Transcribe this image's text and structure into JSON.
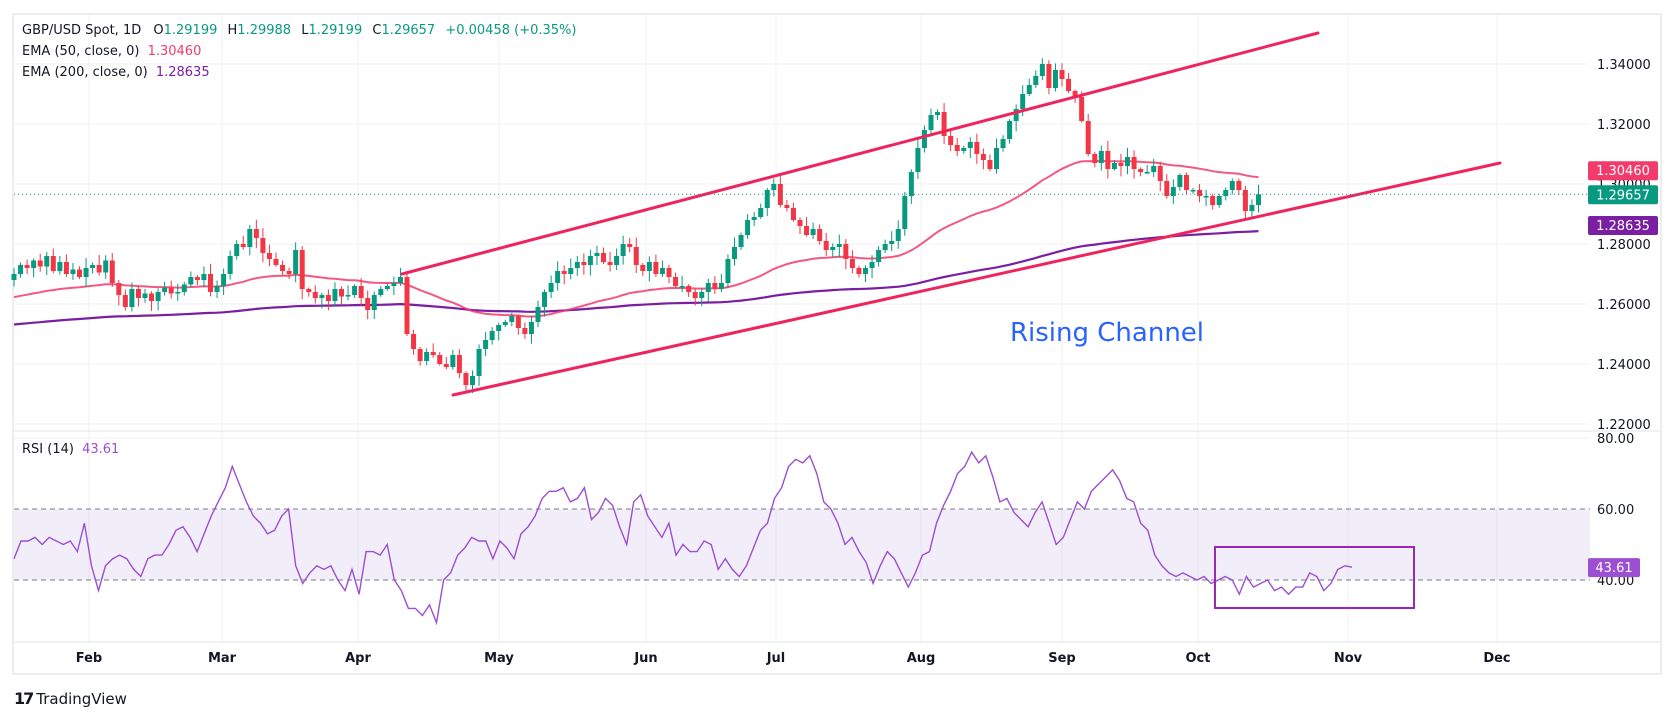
{
  "header": {
    "symbol": "GBP/USD Spot, 1D",
    "o_label": "O",
    "o": "1.29199",
    "h_label": "H",
    "h": "1.29988",
    "l_label": "L",
    "l": "1.29199",
    "c_label": "C",
    "c": "1.29657",
    "change": "+0.00458 (+0.35%)"
  },
  "indicators": {
    "ema50": {
      "label": "EMA (50, close, 0)",
      "value": "1.30460",
      "color": "#f23b6b"
    },
    "ema200": {
      "label": "EMA (200, close, 0)",
      "value": "1.28635",
      "color": "#7b1fa2"
    },
    "rsi": {
      "label": "RSI (14)",
      "value": "43.61",
      "color": "#9c4fd1"
    }
  },
  "annotation": {
    "text": "Rising Channel",
    "color": "#2962ff"
  },
  "brand": {
    "name": "TradingView"
  },
  "colors": {
    "up": "#089981",
    "down": "#f23645",
    "channel": "#f0245d"
  },
  "chart_data": [
    {
      "type": "candlestick",
      "title": "GBP/USD Spot, 1D",
      "ylim": [
        1.215,
        1.355
      ],
      "y_ticks": [
        "1.34000",
        "1.32000",
        "1.30000",
        "1.28000",
        "1.26000",
        "1.24000",
        "1.22000"
      ],
      "x_ticks": [
        "Feb",
        "Mar",
        "Apr",
        "May",
        "Jun",
        "Jul",
        "Aug",
        "Sep",
        "Oct",
        "Nov",
        "Dec"
      ],
      "last_price": 1.29657,
      "price_tags": [
        {
          "label": "1.30460",
          "value": 1.3046,
          "color": "#f23b6b"
        },
        {
          "label": "1.29657",
          "value": 1.29657,
          "color": "#089981"
        },
        {
          "label": "1.28635",
          "value": 1.28635,
          "color": "#7b1fa2"
        }
      ],
      "closes": [
        1.27,
        1.273,
        1.272,
        1.2745,
        1.2725,
        1.276,
        1.271,
        1.274,
        1.27,
        1.2715,
        1.269,
        1.272,
        1.273,
        1.2705,
        1.2745,
        1.267,
        1.263,
        1.259,
        1.265,
        1.262,
        1.2635,
        1.261,
        1.264,
        1.2655,
        1.2635,
        1.264,
        1.2665,
        1.269,
        1.268,
        1.27,
        1.264,
        1.266,
        1.27,
        1.276,
        1.28,
        1.279,
        1.285,
        1.282,
        1.277,
        1.275,
        1.273,
        1.271,
        1.27,
        1.278,
        1.265,
        1.264,
        1.262,
        1.263,
        1.261,
        1.265,
        1.2625,
        1.263,
        1.266,
        1.262,
        1.258,
        1.263,
        1.265,
        1.266,
        1.267,
        1.269,
        1.25,
        1.245,
        1.241,
        1.244,
        1.243,
        1.24,
        1.239,
        1.243,
        1.237,
        1.233,
        1.236,
        1.245,
        1.248,
        1.251,
        1.253,
        1.254,
        1.256,
        1.252,
        1.25,
        1.254,
        1.259,
        1.264,
        1.267,
        1.271,
        1.27,
        1.272,
        1.274,
        1.273,
        1.276,
        1.277,
        1.274,
        1.273,
        1.276,
        1.28,
        1.279,
        1.273,
        1.271,
        1.274,
        1.27,
        1.272,
        1.269,
        1.266,
        1.266,
        1.264,
        1.262,
        1.264,
        1.267,
        1.265,
        1.267,
        1.275,
        1.279,
        1.283,
        1.288,
        1.289,
        1.292,
        1.298,
        1.3,
        1.293,
        1.292,
        1.288,
        1.286,
        1.283,
        1.285,
        1.281,
        1.278,
        1.279,
        1.28,
        1.275,
        1.272,
        1.27,
        1.272,
        1.274,
        1.278,
        1.28,
        1.281,
        1.285,
        1.296,
        1.304,
        1.312,
        1.318,
        1.323,
        1.324,
        1.316,
        1.313,
        1.311,
        1.312,
        1.314,
        1.31,
        1.308,
        1.305,
        1.312,
        1.315,
        1.321,
        1.325,
        1.33,
        1.333,
        1.336,
        1.34,
        1.332,
        1.338,
        1.335,
        1.331,
        1.329,
        1.321,
        1.31,
        1.307,
        1.311,
        1.305,
        1.307,
        1.306,
        1.309,
        1.305,
        1.304,
        1.304,
        1.306,
        1.301,
        1.296,
        1.299,
        1.303,
        1.298,
        1.298,
        1.296,
        1.296,
        1.293,
        1.296,
        1.298,
        1.301,
        1.298,
        1.291,
        1.293,
        1.29657
      ],
      "ema50": {
        "name": "EMA 50",
        "last": 1.3046
      },
      "ema200": {
        "name": "EMA 200",
        "last": 1.28635
      },
      "channel": {
        "upper": [
          {
            "date_idx": 64,
            "price": 1.2705
          },
          {
            "date_idx": 196,
            "price": 1.351
          }
        ],
        "lower": [
          {
            "date_idx": 72,
            "price": 1.2302
          },
          {
            "date_idx": 222,
            "price": 1.3077
          }
        ]
      }
    },
    {
      "type": "line",
      "title": "RSI (14)",
      "ylim": [
        25,
        82
      ],
      "y_ticks": [
        "80.00",
        "60.00",
        "40.00"
      ],
      "bands": [
        40,
        60
      ],
      "last": 43.61,
      "values": [
        46,
        51,
        51,
        52,
        50,
        52,
        51,
        50,
        51,
        48,
        56,
        44,
        37,
        44,
        46,
        47,
        46,
        43,
        41,
        46,
        47,
        47,
        50,
        54,
        55,
        52,
        48,
        53,
        58,
        62,
        66,
        72,
        67,
        62,
        58,
        56,
        53,
        54,
        58,
        60,
        44,
        39,
        42,
        44,
        43,
        44,
        40,
        37,
        43,
        36,
        48,
        48,
        47,
        50,
        40,
        37,
        32,
        32,
        30,
        33,
        28,
        40,
        42,
        47,
        49,
        52,
        51,
        51,
        46,
        51,
        49,
        46,
        53,
        55,
        58,
        63,
        65,
        65,
        66,
        62,
        63,
        66,
        57,
        59,
        63,
        61,
        55,
        50,
        62,
        64,
        58,
        55,
        52,
        56,
        47,
        50,
        48,
        48,
        51,
        50,
        43,
        46,
        43,
        41,
        44,
        49,
        54,
        56,
        63,
        66,
        72,
        74,
        73,
        75,
        70,
        62,
        60,
        56,
        50,
        52,
        48,
        45,
        39,
        44,
        48,
        46,
        42,
        38,
        42,
        47,
        48,
        56,
        61,
        65,
        70,
        72,
        76,
        73,
        75,
        69,
        62,
        63,
        59,
        57,
        55,
        59,
        62,
        56,
        50,
        52,
        57,
        62,
        60,
        65,
        67,
        69,
        71,
        68,
        63,
        62,
        56,
        54,
        47,
        44,
        42,
        41,
        42,
        41,
        40,
        41,
        39,
        40,
        41,
        40,
        36,
        41,
        38,
        39,
        40,
        37,
        38,
        36,
        38,
        38,
        42,
        41,
        37,
        39,
        43,
        44,
        43.61
      ]
    }
  ]
}
